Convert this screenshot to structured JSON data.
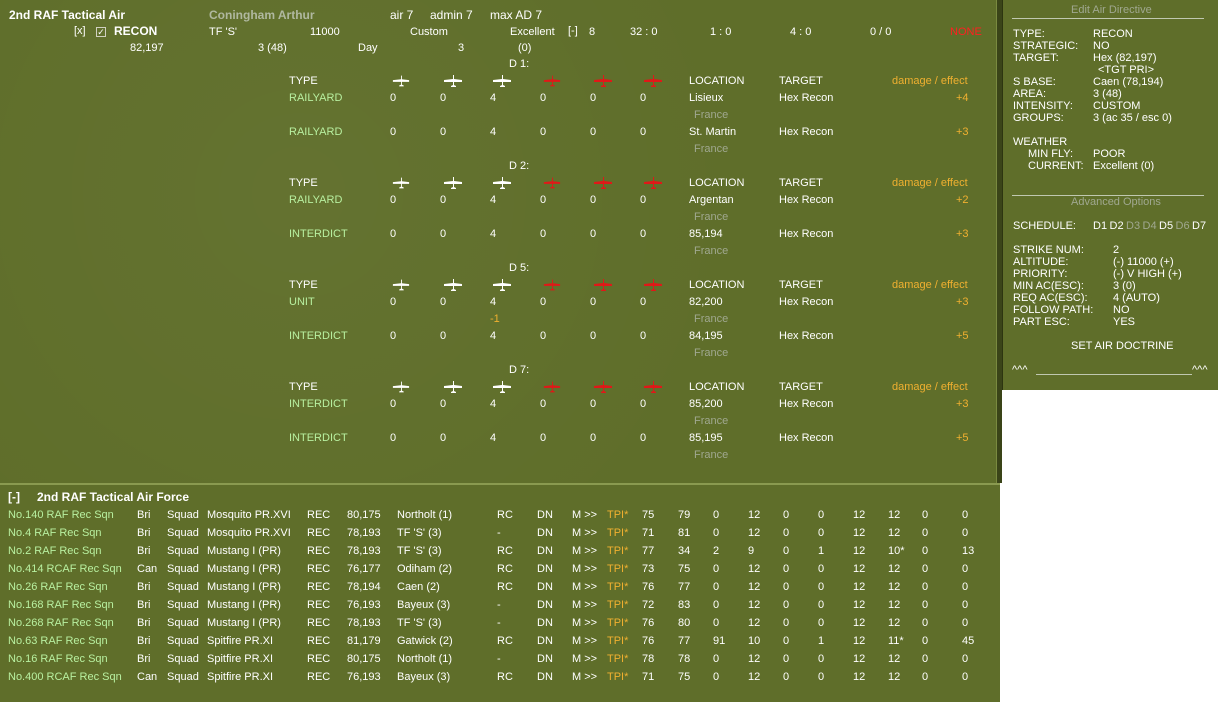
{
  "header": {
    "unit_name": "2nd RAF Tactical Air",
    "commander": "Coningham Arthur",
    "air": "air 7",
    "admin": "admin 7",
    "max_ad": "max AD 7",
    "x_box": "[x]",
    "check": "✓",
    "mission": "RECON",
    "hex": "82,197",
    "tf": "TF 'S'",
    "altitude": "11000",
    "custom": "Custom",
    "weather": "Excellent",
    "minus_box": "[-]",
    "num8": "8",
    "r1": "32 : 0",
    "r2": "1 : 0",
    "r3": "4 : 0",
    "r4": "0 / 0",
    "none": "NONE",
    "groups": "3 (48)",
    "day": "Day",
    "three": "3",
    "zero": "(0)"
  },
  "columns": {
    "type": "TYPE",
    "location": "LOCATION",
    "target": "TARGET",
    "damage": "damage / effect"
  },
  "days": [
    {
      "label": "D 1:",
      "rows": [
        {
          "type": "RAILYARD",
          "v": [
            "0",
            "0",
            "4",
            "0",
            "0",
            "0"
          ],
          "location": "Lisieux",
          "region": "France",
          "target": "Hex Recon",
          "effect": "+4",
          "extra": ""
        },
        {
          "type": "RAILYARD",
          "v": [
            "0",
            "0",
            "4",
            "0",
            "0",
            "0"
          ],
          "location": "St. Martin",
          "region": "France",
          "target": "Hex Recon",
          "effect": "+3",
          "extra": ""
        }
      ]
    },
    {
      "label": "D 2:",
      "rows": [
        {
          "type": "RAILYARD",
          "v": [
            "0",
            "0",
            "4",
            "0",
            "0",
            "0"
          ],
          "location": "Argentan",
          "region": "France",
          "target": "Hex Recon",
          "effect": "+2",
          "extra": ""
        },
        {
          "type": "INTERDICT",
          "v": [
            "0",
            "0",
            "4",
            "0",
            "0",
            "0"
          ],
          "location": "85,194",
          "region": "France",
          "target": "Hex Recon",
          "effect": "+3",
          "extra": ""
        }
      ]
    },
    {
      "label": "D 5:",
      "rows": [
        {
          "type": "UNIT",
          "v": [
            "0",
            "0",
            "4",
            "0",
            "0",
            "0"
          ],
          "location": "82,200",
          "region": "France",
          "target": "Hex Recon",
          "effect": "+3",
          "extra": "-1"
        },
        {
          "type": "INTERDICT",
          "v": [
            "0",
            "0",
            "4",
            "0",
            "0",
            "0"
          ],
          "location": "84,195",
          "region": "France",
          "target": "Hex Recon",
          "effect": "+5",
          "extra": ""
        }
      ]
    },
    {
      "label": "D 7:",
      "rows": [
        {
          "type": "INTERDICT",
          "v": [
            "0",
            "0",
            "4",
            "0",
            "0",
            "0"
          ],
          "location": "85,200",
          "region": "France",
          "target": "Hex Recon",
          "effect": "+3",
          "extra": ""
        },
        {
          "type": "INTERDICT",
          "v": [
            "0",
            "0",
            "4",
            "0",
            "0",
            "0"
          ],
          "location": "85,195",
          "region": "France",
          "target": "Hex Recon",
          "effect": "+5",
          "extra": ""
        }
      ]
    }
  ],
  "directive": {
    "title": "Edit Air Directive",
    "fields": [
      {
        "label": "TYPE:",
        "value": "RECON"
      },
      {
        "label": "STRATEGIC:",
        "value": "NO"
      },
      {
        "label": "TARGET:",
        "value": "Hex (82,197)"
      },
      {
        "label": "",
        "value": "<TGT PRI>"
      },
      {
        "label": "S BASE:",
        "value": "Caen (78,194)"
      },
      {
        "label": "AREA:",
        "value": "3 (48)"
      },
      {
        "label": "INTENSITY:",
        "value": "CUSTOM"
      },
      {
        "label": "GROUPS:",
        "value": "3 (ac 35 / esc 0)"
      }
    ],
    "weather_label": "WEATHER",
    "min_fly_label": "MIN FLY:",
    "min_fly": "POOR",
    "current_label": "CURRENT:",
    "current": "Excellent (0)",
    "advanced_title": "Advanced Options",
    "schedule_label": "SCHEDULE:",
    "schedule": [
      {
        "d": "D1",
        "active": true
      },
      {
        "d": "D2",
        "active": true
      },
      {
        "d": "D3",
        "active": false
      },
      {
        "d": "D4",
        "active": false
      },
      {
        "d": "D5",
        "active": true
      },
      {
        "d": "D6",
        "active": false
      },
      {
        "d": "D7",
        "active": true
      }
    ],
    "options": [
      {
        "label": "STRIKE NUM:",
        "value": "2"
      },
      {
        "label": "ALTITUDE:",
        "value": "(-)  11000  (+)"
      },
      {
        "label": "PRIORITY:",
        "value": "(-)  V HIGH  (+)"
      },
      {
        "label": "MIN AC(ESC):",
        "value": "3 (0)"
      },
      {
        "label": "REQ AC(ESC):",
        "value": "4 (AUTO)"
      },
      {
        "label": "FOLLOW PATH:",
        "value": "NO"
      },
      {
        "label": "PART ESC:",
        "value": "YES"
      }
    ],
    "doctrine": "SET AIR DOCTRINE",
    "wave_left": "^^^",
    "wave_right": "^^^"
  },
  "force": {
    "toggle": "[-]",
    "title": "2nd RAF Tactical Air Force",
    "rows": [
      [
        "No.140 RAF Rec Sqn",
        "Bri",
        "Squad",
        "Mosquito PR.XVI",
        "REC",
        "80,175",
        "Northolt (1)",
        "RC",
        "DN",
        "M >>",
        "TPI*",
        "75",
        "79",
        "0",
        "12",
        "0",
        "0",
        "12",
        "12",
        "0",
        "0"
      ],
      [
        "No.4 RAF Rec Sqn",
        "Bri",
        "Squad",
        "Mosquito PR.XVI",
        "REC",
        "78,193",
        "TF 'S' (3)",
        "-",
        "DN",
        "M >>",
        "TPI*",
        "71",
        "81",
        "0",
        "12",
        "0",
        "0",
        "12",
        "12",
        "0",
        "0"
      ],
      [
        "No.2 RAF Rec Sqn",
        "Bri",
        "Squad",
        "Mustang I (PR)",
        "REC",
        "78,193",
        "TF 'S' (3)",
        "RC",
        "DN",
        "M >>",
        "TPI*",
        "77",
        "34",
        "2",
        "9",
        "0",
        "1",
        "12",
        "10*",
        "0",
        "13"
      ],
      [
        "No.414 RCAF Rec Sqn",
        "Can",
        "Squad",
        "Mustang I (PR)",
        "REC",
        "76,177",
        "Odiham (2)",
        "RC",
        "DN",
        "M >>",
        "TPI*",
        "73",
        "75",
        "0",
        "12",
        "0",
        "0",
        "12",
        "12",
        "0",
        "0"
      ],
      [
        "No.26 RAF Rec Sqn",
        "Bri",
        "Squad",
        "Mustang I (PR)",
        "REC",
        "78,194",
        "Caen (2)",
        "RC",
        "DN",
        "M >>",
        "TPI*",
        "76",
        "77",
        "0",
        "12",
        "0",
        "0",
        "12",
        "12",
        "0",
        "0"
      ],
      [
        "No.168 RAF Rec Sqn",
        "Bri",
        "Squad",
        "Mustang I (PR)",
        "REC",
        "76,193",
        "Bayeux (3)",
        "-",
        "DN",
        "M >>",
        "TPI*",
        "72",
        "83",
        "0",
        "12",
        "0",
        "0",
        "12",
        "12",
        "0",
        "0"
      ],
      [
        "No.268 RAF Rec Sqn",
        "Bri",
        "Squad",
        "Mustang I (PR)",
        "REC",
        "78,193",
        "TF 'S' (3)",
        "-",
        "DN",
        "M >>",
        "TPI*",
        "76",
        "80",
        "0",
        "12",
        "0",
        "0",
        "12",
        "12",
        "0",
        "0"
      ],
      [
        "No.63 RAF Rec Sqn",
        "Bri",
        "Squad",
        "Spitfire PR.XI",
        "REC",
        "81,179",
        "Gatwick (2)",
        "RC",
        "DN",
        "M >>",
        "TPI*",
        "76",
        "77",
        "91",
        "10",
        "0",
        "1",
        "12",
        "11*",
        "0",
        "45"
      ],
      [
        "No.16 RAF Rec Sqn",
        "Bri",
        "Squad",
        "Spitfire PR.XI",
        "REC",
        "80,175",
        "Northolt (1)",
        "-",
        "DN",
        "M >>",
        "TPI*",
        "78",
        "78",
        "0",
        "12",
        "0",
        "0",
        "12",
        "12",
        "0",
        "0"
      ],
      [
        "No.400 RCAF Rec Sqn",
        "Can",
        "Squad",
        "Spitfire PR.XI",
        "REC",
        "76,193",
        "Bayeux (3)",
        "RC",
        "DN",
        "M >>",
        "TPI*",
        "71",
        "75",
        "0",
        "12",
        "0",
        "0",
        "12",
        "12",
        "0",
        "0"
      ]
    ]
  },
  "colors": {
    "panel": "#5f6e2a",
    "text_green": "#b8f0a0",
    "text_orange": "#f0b030",
    "text_red": "#ff2020"
  },
  "icons": [
    "plane-white-icon",
    "plane-white-large-icon",
    "plane-red-icon",
    "plane-red-large-icon"
  ]
}
